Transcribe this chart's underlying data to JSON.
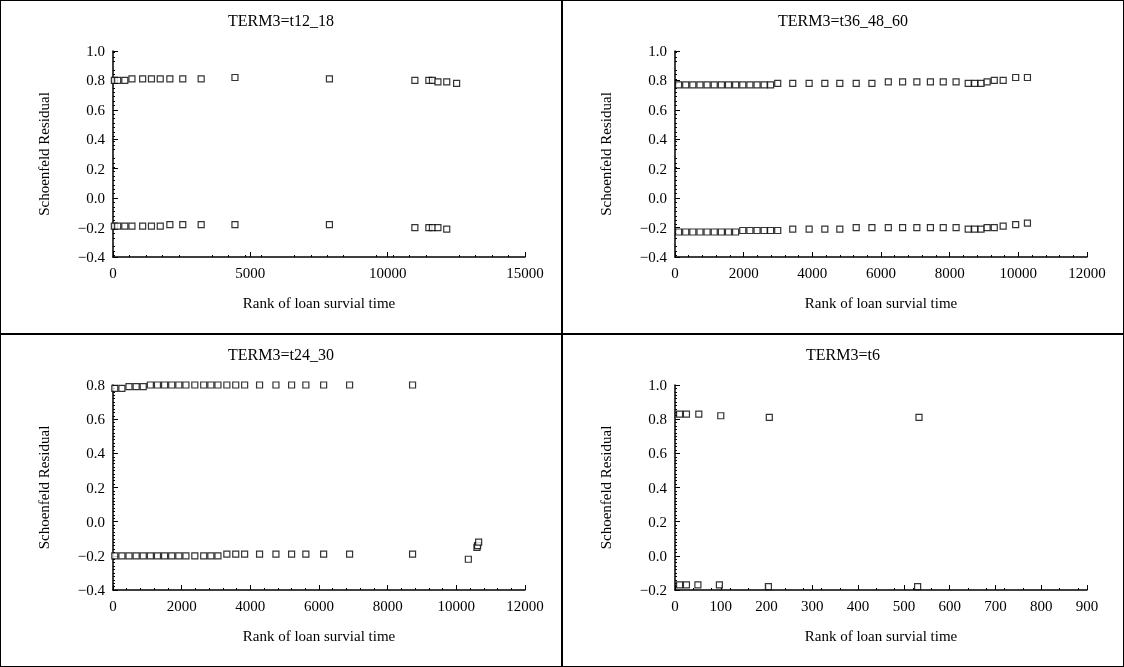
{
  "chart_data": [
    {
      "type": "scatter",
      "title": "TERM3=t12_18",
      "xlabel": "Rank of loan survial time",
      "ylabel": "Schoenfeld Residual",
      "xlim": [
        0,
        15000
      ],
      "xticks": [
        0,
        5000,
        10000,
        15000
      ],
      "ylim": [
        -0.4,
        1.0
      ],
      "yticks": [
        {
          "value": -0.4,
          "label": "−0.4"
        },
        {
          "value": -0.2,
          "label": "−0.2"
        },
        {
          "value": 0,
          "label": "0.0"
        },
        {
          "value": 0.2,
          "label": "0.2"
        },
        {
          "value": 0.4,
          "label": "0.4"
        },
        {
          "value": 0.6,
          "label": "0.6"
        },
        {
          "value": 0.8,
          "label": "0.8"
        },
        {
          "value": 1.0,
          "label": "1.0"
        }
      ],
      "marker": "square",
      "grid": false,
      "series": [
        {
          "color": "#000000",
          "x": [
            50,
            170,
            430,
            690,
            1080,
            1400,
            1720,
            2070,
            2540,
            3210,
            4440,
            7880,
            10990,
            11500,
            11630,
            11830,
            12150,
            12510
          ],
          "values": [
            0.8,
            0.8,
            0.8,
            0.81,
            0.81,
            0.81,
            0.81,
            0.81,
            0.81,
            0.81,
            0.82,
            0.81,
            0.8,
            0.8,
            0.8,
            0.79,
            0.79,
            0.78
          ]
        },
        {
          "color": "#000000",
          "x": [
            50,
            170,
            430,
            690,
            1080,
            1400,
            1720,
            2070,
            2540,
            3210,
            4440,
            7880,
            10990,
            11500,
            11630,
            11830,
            12150
          ],
          "values": [
            -0.19,
            -0.19,
            -0.19,
            -0.19,
            -0.19,
            -0.19,
            -0.19,
            -0.18,
            -0.18,
            -0.18,
            -0.18,
            -0.18,
            -0.2,
            -0.2,
            -0.2,
            -0.2,
            -0.21
          ]
        }
      ]
    },
    {
      "type": "scatter",
      "title": "TERM3=t36_48_60",
      "xlabel": "Rank of loan survial time",
      "ylabel": "Schoenfeld Residual",
      "xlim": [
        0,
        12000
      ],
      "xticks": [
        0,
        2000,
        4000,
        6000,
        8000,
        10000,
        12000
      ],
      "ylim": [
        -0.4,
        1.0
      ],
      "yticks": [
        {
          "value": -0.4,
          "label": "−0.4"
        },
        {
          "value": -0.2,
          "label": "−0.2"
        },
        {
          "value": 0,
          "label": "0.0"
        },
        {
          "value": 0.2,
          "label": "0.2"
        },
        {
          "value": 0.4,
          "label": "0.4"
        },
        {
          "value": 0.6,
          "label": "0.6"
        },
        {
          "value": 0.8,
          "label": "0.8"
        },
        {
          "value": 1.0,
          "label": "1.0"
        }
      ],
      "marker": "square",
      "grid": false,
      "series": [
        {
          "color": "#000000",
          "x": [
            104,
            312,
            519,
            727,
            935,
            1143,
            1351,
            1558,
            1766,
            1974,
            2182,
            2390,
            2597,
            2784,
            2992,
            3429,
            3907,
            4364,
            4800,
            5278,
            5735,
            6213,
            6629,
            7044,
            7439,
            7813,
            8187,
            8540,
            8727,
            8914,
            9091,
            9299,
            9558,
            9922,
            10265
          ],
          "values": [
            0.77,
            0.77,
            0.77,
            0.77,
            0.77,
            0.77,
            0.77,
            0.77,
            0.77,
            0.77,
            0.77,
            0.77,
            0.77,
            0.77,
            0.78,
            0.78,
            0.78,
            0.78,
            0.78,
            0.78,
            0.78,
            0.79,
            0.79,
            0.79,
            0.79,
            0.79,
            0.79,
            0.78,
            0.78,
            0.78,
            0.79,
            0.8,
            0.8,
            0.82,
            0.82
          ]
        },
        {
          "color": "#000000",
          "x": [
            104,
            312,
            519,
            727,
            935,
            1143,
            1351,
            1558,
            1766,
            1974,
            2182,
            2390,
            2597,
            2784,
            2992,
            3429,
            3907,
            4364,
            4800,
            5278,
            5735,
            6213,
            6629,
            7044,
            7439,
            7813,
            8187,
            8540,
            8727,
            8914,
            9091,
            9299,
            9558,
            9922,
            10265
          ],
          "values": [
            -0.23,
            -0.23,
            -0.23,
            -0.23,
            -0.23,
            -0.23,
            -0.23,
            -0.23,
            -0.23,
            -0.22,
            -0.22,
            -0.22,
            -0.22,
            -0.22,
            -0.22,
            -0.21,
            -0.21,
            -0.21,
            -0.21,
            -0.2,
            -0.2,
            -0.2,
            -0.2,
            -0.2,
            -0.2,
            -0.2,
            -0.2,
            -0.21,
            -0.21,
            -0.21,
            -0.2,
            -0.2,
            -0.19,
            -0.18,
            -0.17
          ]
        }
      ]
    },
    {
      "type": "scatter",
      "title": "TERM3=t24_30",
      "xlabel": "Rank of loan survial time",
      "ylabel": "Schoenfeld Residual",
      "xlim": [
        0,
        12000
      ],
      "xticks": [
        0,
        2000,
        4000,
        6000,
        8000,
        10000,
        12000
      ],
      "ylim": [
        -0.4,
        0.8
      ],
      "yticks": [
        {
          "value": -0.4,
          "label": "−0.4"
        },
        {
          "value": -0.2,
          "label": "−0.2"
        },
        {
          "value": 0,
          "label": "0.0"
        },
        {
          "value": 0.2,
          "label": "0.2"
        },
        {
          "value": 0.4,
          "label": "0.4"
        },
        {
          "value": 0.6,
          "label": "0.6"
        },
        {
          "value": 0.8,
          "label": "0.8"
        }
      ],
      "marker": "square",
      "grid": false,
      "series": [
        {
          "color": "#000000",
          "x": [
            52,
            259,
            466,
            674,
            881,
            1088,
            1295,
            1503,
            1710,
            1917,
            2124,
            2383,
            2642,
            2850,
            3057,
            3316,
            3575,
            3834,
            4269,
            4746,
            5202,
            5617,
            6135,
            6891,
            8725
          ],
          "values": [
            0.78,
            0.78,
            0.79,
            0.79,
            0.79,
            0.8,
            0.8,
            0.8,
            0.8,
            0.8,
            0.8,
            0.8,
            0.8,
            0.8,
            0.8,
            0.8,
            0.8,
            0.8,
            0.8,
            0.8,
            0.8,
            0.8,
            0.8,
            0.8,
            0.8
          ]
        },
        {
          "color": "#000000",
          "x": [
            52,
            259,
            466,
            674,
            881,
            1088,
            1295,
            1503,
            1710,
            1917,
            2124,
            2383,
            2642,
            2850,
            3057,
            3316,
            3575,
            3834,
            4269,
            4746,
            5202,
            5617,
            6135,
            6891,
            8725,
            10350,
            10600,
            10620,
            10650
          ],
          "values": [
            -0.2,
            -0.2,
            -0.2,
            -0.2,
            -0.2,
            -0.2,
            -0.2,
            -0.2,
            -0.2,
            -0.2,
            -0.2,
            -0.2,
            -0.2,
            -0.2,
            -0.2,
            -0.19,
            -0.19,
            -0.19,
            -0.19,
            -0.19,
            -0.19,
            -0.19,
            -0.19,
            -0.19,
            -0.19,
            -0.22,
            -0.15,
            -0.14,
            -0.12
          ]
        }
      ]
    },
    {
      "type": "scatter",
      "title": "TERM3=t6",
      "xlabel": "Rank of loan survial time",
      "ylabel": "Schoenfeld Residual",
      "xlim": [
        0,
        900
      ],
      "xticks": [
        0,
        100,
        200,
        300,
        400,
        500,
        600,
        700,
        800,
        900
      ],
      "ylim": [
        -0.2,
        1.0
      ],
      "yticks": [
        {
          "value": -0.2,
          "label": "−0.2"
        },
        {
          "value": 0,
          "label": "0.0"
        },
        {
          "value": 0.2,
          "label": "0.2"
        },
        {
          "value": 0.4,
          "label": "0.4"
        },
        {
          "value": 0.6,
          "label": "0.6"
        },
        {
          "value": 0.8,
          "label": "0.8"
        },
        {
          "value": 1.0,
          "label": "1.0"
        }
      ],
      "marker": "square",
      "grid": false,
      "series": [
        {
          "color": "#000000",
          "x": [
            10,
            25,
            52,
            100,
            206,
            533
          ],
          "values": [
            0.83,
            0.83,
            0.83,
            0.82,
            0.81,
            0.81
          ]
        },
        {
          "color": "#000000",
          "x": [
            10,
            25,
            50,
            97,
            204,
            530
          ],
          "values": [
            -0.17,
            -0.17,
            -0.17,
            -0.17,
            -0.18,
            -0.18
          ]
        }
      ]
    }
  ]
}
